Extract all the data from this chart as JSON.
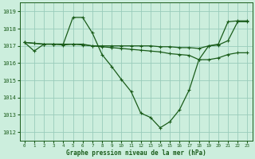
{
  "title": "Graphe pression niveau de la mer (hPa)",
  "bg_color": "#cceedd",
  "grid_color": "#99ccbb",
  "line_color": "#1a5c1a",
  "ylim": [
    1011.5,
    1019.5
  ],
  "xlim": [
    -0.5,
    23.5
  ],
  "yticks": [
    1012,
    1013,
    1014,
    1015,
    1016,
    1017,
    1018,
    1019
  ],
  "xticks": [
    0,
    1,
    2,
    3,
    4,
    5,
    6,
    7,
    8,
    9,
    10,
    11,
    12,
    13,
    14,
    15,
    16,
    17,
    18,
    19,
    20,
    21,
    22,
    23
  ],
  "series1": [
    1017.2,
    1016.7,
    1017.1,
    1017.1,
    1017.1,
    1018.65,
    1018.65,
    1017.75,
    1016.5,
    1015.8,
    1015.05,
    1014.35,
    1013.1,
    1012.85,
    1012.25,
    1012.6,
    1013.3,
    1014.45,
    1016.2,
    1017.0,
    1017.1,
    1018.4,
    1018.45,
    1018.45
  ],
  "series2": [
    1017.2,
    1017.15,
    1017.1,
    1017.1,
    1017.05,
    1017.1,
    1017.1,
    1017.0,
    1016.95,
    1016.9,
    1016.85,
    1016.8,
    1016.75,
    1016.7,
    1016.65,
    1016.55,
    1016.5,
    1016.45,
    1016.2,
    1016.2,
    1016.3,
    1016.5,
    1016.6,
    1016.6
  ],
  "series3": [
    1017.2,
    1017.15,
    1017.1,
    1017.1,
    1017.1,
    1017.1,
    1017.05,
    1017.0,
    1017.0,
    1017.0,
    1017.0,
    1017.0,
    1017.0,
    1017.0,
    1016.95,
    1016.95,
    1016.9,
    1016.9,
    1016.85,
    1017.0,
    1017.05,
    1017.3,
    1018.4,
    1018.4
  ]
}
